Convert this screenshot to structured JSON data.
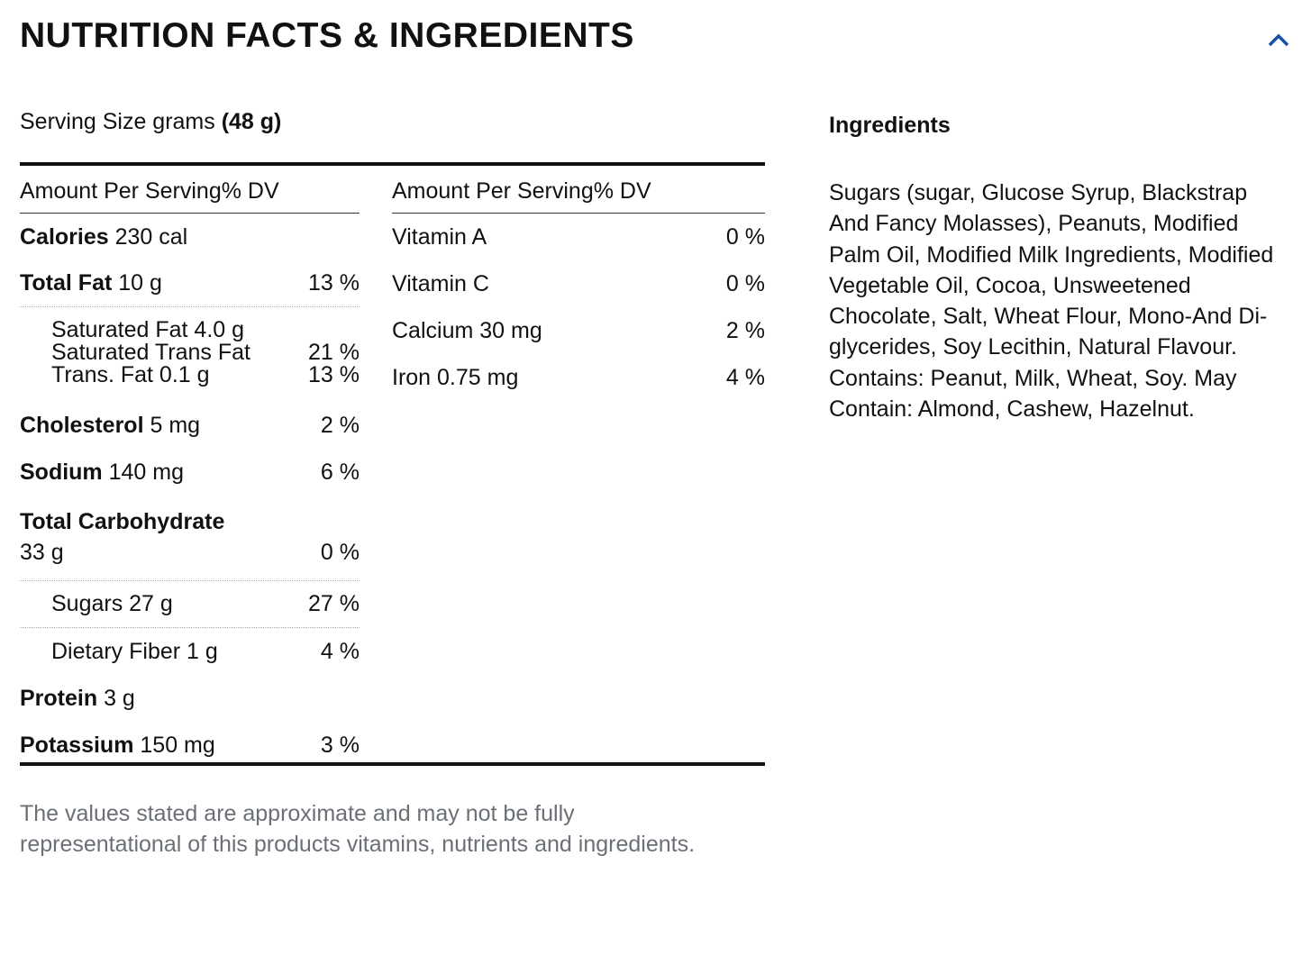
{
  "title": "NUTRITION FACTS & INGREDIENTS",
  "serving": {
    "label": "Serving Size grams",
    "value": "(48 g)"
  },
  "left_header": "Amount Per Serving% DV",
  "right_header": "Amount Per Serving% DV",
  "calories": {
    "label": "Calories",
    "value": "230 cal"
  },
  "total_fat": {
    "label": "Total Fat",
    "value": "10 g",
    "dv": "13 %"
  },
  "saturated": {
    "line1": "Saturated Fat 4.0 g",
    "line2": "Saturated Trans Fat",
    "line2_dv": "21 %",
    "line3": "Trans. Fat 0.1 g",
    "line3_dv": "13 %"
  },
  "cholesterol": {
    "label": "Cholesterol",
    "value": "5 mg",
    "dv": "2 %"
  },
  "sodium": {
    "label": "Sodium",
    "value": "140 mg",
    "dv": "6 %"
  },
  "carb": {
    "label": "Total Carbohydrate",
    "value": "33 g",
    "dv": "0 %"
  },
  "sugars": {
    "label": "Sugars 27 g",
    "dv": "27 %"
  },
  "fiber": {
    "label": "Dietary Fiber 1 g",
    "dv": "4 %"
  },
  "protein": {
    "label": "Protein",
    "value": "3 g"
  },
  "potassium": {
    "label": "Potassium",
    "value": "150 mg",
    "dv": "3 %"
  },
  "vitamins": [
    {
      "label": "Vitamin A",
      "dv": "0 %"
    },
    {
      "label": "Vitamin C",
      "dv": "0 %"
    },
    {
      "label": "Calcium 30 mg",
      "dv": "2 %"
    },
    {
      "label": "Iron 0.75 mg",
      "dv": "4 %"
    }
  ],
  "note": "The values stated are approximate and may not be fully representational of this products vitamins, nutrients and ingredients.",
  "ingredients_title": "Ingredients",
  "ingredients": "Sugars (sugar, Glucose Syrup, Blackstrap And Fancy Molasses), Peanuts, Modified Palm Oil, Modified Milk Ingredients, Modified Vegetable Oil, Cocoa, Unsweetened Chocolate, Salt, Wheat Flour, Mono-And Di-glycerides, Soy Lecithin, Natural Flavour. Contains: Peanut, Milk, Wheat, Soy. May Contain: Almond, Cashew, Hazelnut.",
  "accent": "#1a4fa8"
}
